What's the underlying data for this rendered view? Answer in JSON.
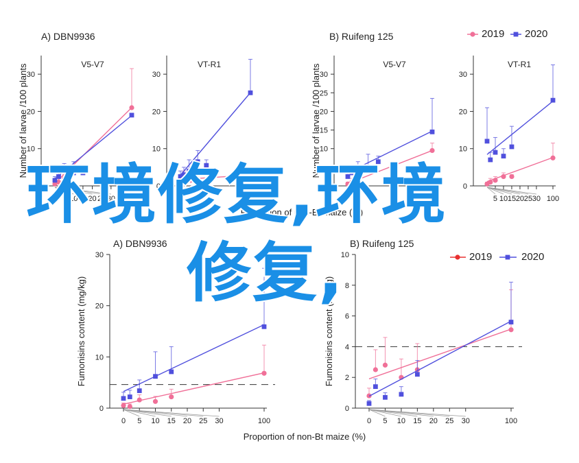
{
  "colors": {
    "y2019": "#f07098",
    "y2020": "#5050dd",
    "axis": "#333333",
    "overlay": "#1a8fe6"
  },
  "overlay_text": {
    "line1": "环境修复,环境",
    "line2": "修复,"
  },
  "legend_items": [
    {
      "label": "2019",
      "key": "y2019",
      "marker": "circle"
    },
    {
      "label": "2020",
      "key": "y2020",
      "marker": "square"
    }
  ],
  "chart_data": [
    {
      "type": "scatter",
      "title": "A)  DBN9936",
      "subtitle": "V5-V7",
      "ylabel": "Number of larvae /100 plants",
      "xlabel": "",
      "ylim": [
        0,
        35
      ],
      "xlim": [
        0,
        100
      ],
      "yticks": [
        0,
        10,
        20,
        30
      ],
      "xticks": [
        5,
        10,
        15,
        20,
        25,
        30,
        100
      ],
      "grid": false,
      "series": [
        {
          "name": "2019",
          "x": [
            0,
            2,
            5,
            100
          ],
          "y": [
            0.5,
            1,
            2,
            21
          ],
          "err": [
            0.5,
            1,
            1,
            10.5
          ]
        },
        {
          "name": "2020",
          "x": [
            0,
            2,
            5,
            10,
            15,
            100
          ],
          "y": [
            1.5,
            2.5,
            4,
            3.5,
            3.5,
            19
          ],
          "err": [
            1,
            1.5,
            2,
            3,
            1.5,
            0
          ]
        }
      ]
    },
    {
      "type": "scatter",
      "title": "",
      "subtitle": "VT-R1",
      "ylabel": "",
      "xlabel": "",
      "ylim": [
        0,
        35
      ],
      "xlim": [
        0,
        100
      ],
      "yticks": [
        0,
        10,
        20,
        30
      ],
      "xticks": [],
      "grid": false,
      "series": [
        {
          "name": "2019",
          "x": [
            0,
            2,
            4,
            6,
            8,
            10,
            100
          ],
          "y": [
            1.5,
            3,
            2,
            1.5,
            1.5,
            1,
            3
          ],
          "err": [
            1,
            1,
            1,
            0.5,
            0.5,
            0.5,
            0.5
          ]
        },
        {
          "name": "2020",
          "x": [
            0,
            2,
            5,
            10,
            15,
            100
          ],
          "y": [
            2.5,
            3,
            4,
            6.5,
            5.5,
            25
          ],
          "err": [
            1.5,
            2,
            3,
            3,
            1.5,
            9
          ]
        }
      ]
    },
    {
      "type": "scatter",
      "title": "B)  Ruifeng 125",
      "subtitle": "V5-V7",
      "ylabel": "Number of larvae /100 plants",
      "xlabel": "",
      "ylim": [
        0,
        35
      ],
      "xlim": [
        0,
        100
      ],
      "yticks": [
        0,
        5,
        10,
        15,
        20,
        25,
        30
      ],
      "xticks": [
        100
      ],
      "grid": false,
      "series": [
        {
          "name": "2019",
          "x": [
            0,
            2,
            5,
            100
          ],
          "y": [
            0.5,
            1,
            1,
            9.5
          ],
          "err": [
            0.5,
            1,
            1,
            2
          ]
        },
        {
          "name": "2020",
          "x": [
            0,
            2,
            5,
            10,
            15,
            100
          ],
          "y": [
            2.5,
            3.5,
            4,
            5,
            6.5,
            14.5
          ],
          "err": [
            1.5,
            2,
            2.5,
            3.5,
            1.5,
            9
          ]
        }
      ]
    },
    {
      "type": "scatter",
      "title": "",
      "subtitle": "VT-R1",
      "ylabel": "",
      "xlabel": "",
      "ylim": [
        0,
        35
      ],
      "xlim": [
        0,
        100
      ],
      "yticks": [
        0,
        10,
        20,
        30
      ],
      "xticks": [
        5,
        10,
        15,
        20,
        25,
        30,
        100
      ],
      "grid": false,
      "series": [
        {
          "name": "2019",
          "x": [
            0,
            2,
            5,
            10,
            15,
            100
          ],
          "y": [
            0.5,
            1,
            1.5,
            2.5,
            2.5,
            7.5
          ],
          "err": [
            0.5,
            1,
            1,
            1,
            0.5,
            4
          ]
        },
        {
          "name": "2020",
          "x": [
            0,
            2,
            5,
            10,
            15,
            100
          ],
          "y": [
            12,
            7,
            9,
            8,
            10.5,
            23
          ],
          "err": [
            9,
            2,
            4,
            2,
            5.5,
            9.5
          ]
        }
      ]
    },
    {
      "type": "scatter",
      "title": "A)  DBN9936",
      "ylabel": "Fumonisins content (mg/kg)",
      "xlabel": "Proportion of non-Bt maize (%)",
      "ylim": [
        0,
        30
      ],
      "xlim": [
        0,
        100
      ],
      "yticks": [
        0,
        10,
        20,
        30
      ],
      "xticks": [
        0,
        5,
        10,
        15,
        20,
        25,
        30,
        100
      ],
      "threshold": 4.6,
      "grid": false,
      "series": [
        {
          "name": "2019",
          "x": [
            0,
            2,
            5,
            10,
            15,
            100
          ],
          "y": [
            0.5,
            0.3,
            1.6,
            1.3,
            2.2,
            6.8
          ],
          "err": [
            0.5,
            0.5,
            1,
            1,
            1.5,
            5.5
          ]
        },
        {
          "name": "2020",
          "x": [
            0,
            2,
            5,
            10,
            15,
            100
          ],
          "y": [
            1.9,
            2.2,
            3.4,
            6.2,
            7.1,
            15.9
          ],
          "err": [
            1.2,
            1.3,
            2.1,
            4.8,
            4.9,
            11.4
          ]
        }
      ]
    },
    {
      "type": "scatter",
      "title": "B)  Ruifeng 125",
      "ylabel": "Fumonisins content (mg/kg)",
      "xlabel": "Proportion of non-Bt maize (%)",
      "ylim": [
        0,
        10
      ],
      "xlim": [
        0,
        100
      ],
      "yticks": [
        0,
        2,
        4,
        6,
        8,
        10
      ],
      "xticks": [
        0,
        5,
        10,
        15,
        20,
        25,
        30,
        100
      ],
      "threshold": 4,
      "grid": false,
      "series": [
        {
          "name": "2019",
          "x": [
            0,
            2,
            5,
            10,
            15,
            100
          ],
          "y": [
            0.8,
            2.5,
            2.8,
            2.0,
            2.5,
            5.1
          ],
          "err": [
            0.5,
            1.3,
            1.8,
            1.2,
            1.7,
            2.6
          ]
        },
        {
          "name": "2020",
          "x": [
            0,
            2,
            5,
            10,
            15,
            100
          ],
          "y": [
            0.3,
            1.4,
            0.7,
            0.9,
            2.2,
            5.6
          ],
          "err": [
            0.2,
            0.5,
            0.3,
            0.5,
            0.9,
            2.6
          ]
        }
      ]
    }
  ]
}
